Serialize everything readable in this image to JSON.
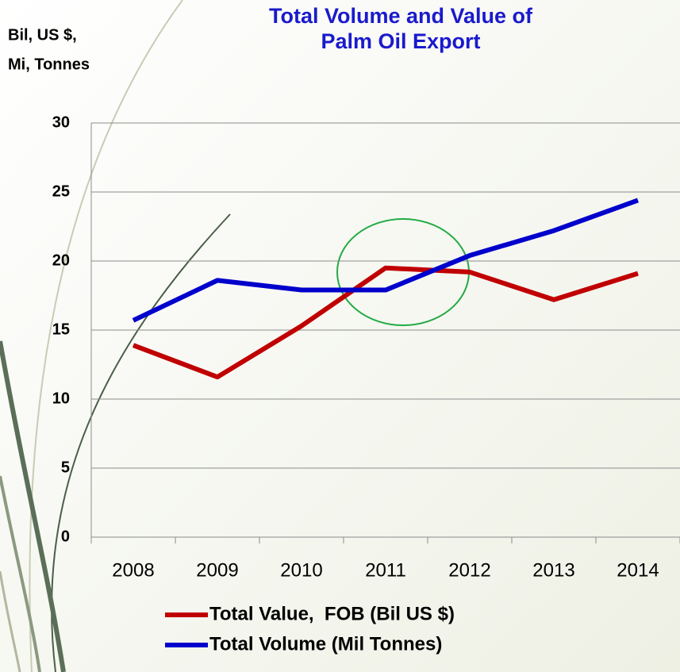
{
  "chart_data": {
    "type": "line",
    "title": [
      "Total Volume and Value of",
      "Palm Oil Export"
    ],
    "y_label": [
      "Bil, US $,",
      "Mi, Tonnes"
    ],
    "categories": [
      "2008",
      "2009",
      "2010",
      "2011",
      "2012",
      "2013",
      "2014"
    ],
    "series": [
      {
        "name": "Total Value,  FOB (Bil US $)",
        "color": "#c00000",
        "values": [
          13.9,
          11.6,
          15.3,
          19.5,
          19.2,
          17.2,
          19.1
        ]
      },
      {
        "name": "Total Volume (Mil Tonnes)",
        "color": "#0000cc",
        "values": [
          15.7,
          18.6,
          17.9,
          17.9,
          20.4,
          22.2,
          24.4
        ]
      }
    ],
    "ylim": [
      0,
      30
    ],
    "yticks": [
      0,
      5,
      10,
      15,
      20,
      25,
      30
    ],
    "grid": true,
    "legend": "bottom"
  }
}
